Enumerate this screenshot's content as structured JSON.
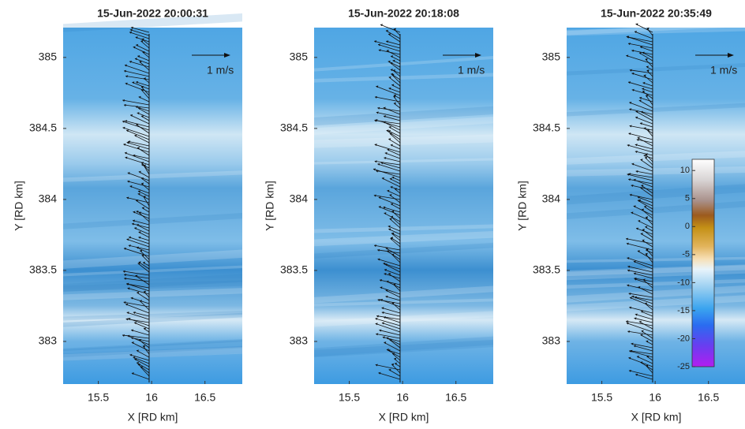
{
  "chart_data": [
    {
      "type": "quiver",
      "title": "15-Jun-2022 20:00:31",
      "xlabel": "X [RD km]",
      "ylabel": "Y [RD km]",
      "scale_label": "1 m/s",
      "xlim": [
        15.17,
        16.85
      ],
      "ylim": [
        382.7,
        385.21
      ],
      "xticks": [
        15.5,
        16,
        16.5
      ],
      "yticks": [
        383,
        383.5,
        384,
        384.5,
        385
      ]
    },
    {
      "type": "quiver",
      "title": "15-Jun-2022 20:18:08",
      "xlabel": "X [RD km]",
      "ylabel": "Y [RD km]",
      "scale_label": "1 m/s",
      "xlim": [
        15.17,
        16.85
      ],
      "ylim": [
        382.7,
        385.21
      ],
      "xticks": [
        15.5,
        16,
        16.5
      ],
      "yticks": [
        383,
        383.5,
        384,
        384.5,
        385
      ]
    },
    {
      "type": "quiver",
      "title": "15-Jun-2022 20:35:49",
      "xlabel": "X [RD km]",
      "ylabel": "Y [RD km]",
      "scale_label": "1 m/s",
      "xlim": [
        15.17,
        16.85
      ],
      "ylim": [
        382.7,
        385.21
      ],
      "xticks": [
        15.5,
        16,
        16.5
      ],
      "yticks": [
        383,
        383.5,
        384,
        384.5,
        385
      ],
      "colorbar": {
        "lim": [
          -25,
          12
        ],
        "ticks": [
          10,
          5,
          0,
          -5,
          -10,
          -15,
          -20,
          -25
        ]
      }
    }
  ]
}
